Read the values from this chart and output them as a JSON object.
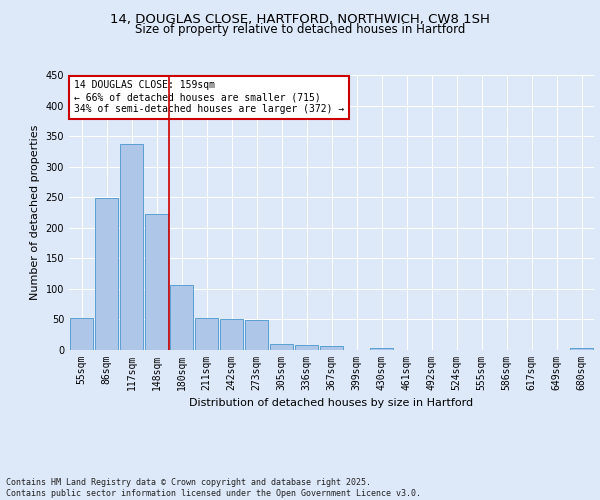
{
  "title": "14, DOUGLAS CLOSE, HARTFORD, NORTHWICH, CW8 1SH",
  "subtitle": "Size of property relative to detached houses in Hartford",
  "xlabel": "Distribution of detached houses by size in Hartford",
  "ylabel": "Number of detached properties",
  "categories": [
    "55sqm",
    "86sqm",
    "117sqm",
    "148sqm",
    "180sqm",
    "211sqm",
    "242sqm",
    "273sqm",
    "305sqm",
    "336sqm",
    "367sqm",
    "399sqm",
    "430sqm",
    "461sqm",
    "492sqm",
    "524sqm",
    "555sqm",
    "586sqm",
    "617sqm",
    "649sqm",
    "680sqm"
  ],
  "values": [
    53,
    248,
    337,
    223,
    107,
    53,
    50,
    49,
    10,
    9,
    7,
    0,
    4,
    0,
    0,
    0,
    0,
    0,
    0,
    0,
    3
  ],
  "bar_color": "#aec6e8",
  "bar_edge_color": "#5a9fd4",
  "annotation_text": "14 DOUGLAS CLOSE: 159sqm\n← 66% of detached houses are smaller (715)\n34% of semi-detached houses are larger (372) →",
  "annotation_box_color": "#ffffff",
  "annotation_box_edge_color": "#cc0000",
  "footnote": "Contains HM Land Registry data © Crown copyright and database right 2025.\nContains public sector information licensed under the Open Government Licence v3.0.",
  "bg_color": "#dde8f8",
  "plot_bg_color": "#dde8f8",
  "ylim": [
    0,
    450
  ],
  "yticks": [
    0,
    50,
    100,
    150,
    200,
    250,
    300,
    350,
    400,
    450
  ],
  "grid_color": "#ffffff",
  "title_fontsize": 9.5,
  "subtitle_fontsize": 8.5,
  "axis_label_fontsize": 8,
  "tick_fontsize": 7,
  "footnote_fontsize": 6,
  "annotation_fontsize": 7
}
